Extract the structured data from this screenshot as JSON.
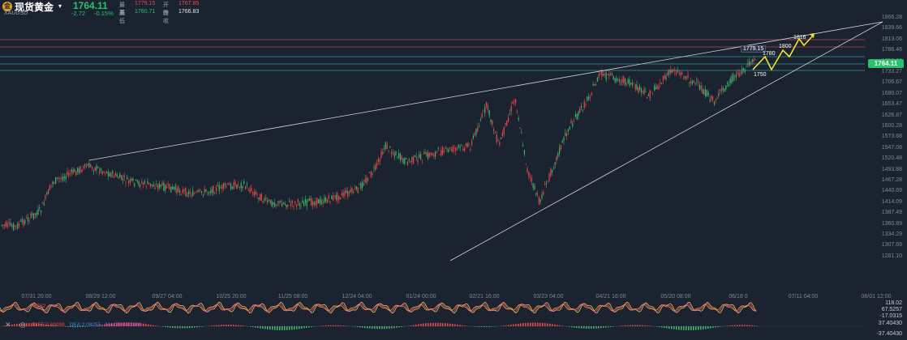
{
  "header": {
    "logo_glyph": "金",
    "symbol_name": "现货黄金",
    "symbol_code": "XAUUSD",
    "caret": "▾",
    "price": "1764.11",
    "change": "-2.72",
    "change_pct": "-0.15%",
    "high_label": "最高",
    "high_value": "1779.15",
    "open_label": "开盘",
    "open_value": "1767.85",
    "low_label": "最低",
    "low_value": "1760.71",
    "prev_label": "昨收",
    "prev_value": "1766.83"
  },
  "y_axis_labels": [
    "1866.28",
    "1839.66",
    "1813.06",
    "1786.46",
    "1759.86",
    "1733.27",
    "1706.67",
    "1680.07",
    "1653.47",
    "1626.87",
    "1600.28",
    "1573.68",
    "1547.08",
    "1520.48",
    "1493.88",
    "1467.28",
    "1440.69",
    "1414.09",
    "1387.49",
    "1360.89",
    "1334.29",
    "1307.69",
    "1281.10"
  ],
  "x_axis_labels": [
    "07/31 20:00",
    "08/29 12:00",
    "09/27 04:00",
    "10/25 20:00",
    "11/25 08:00",
    "12/24 04:00",
    "01/24 00:00",
    "02/21 16:00",
    "03/23 04:00",
    "04/21 16:00",
    "05/20 08:00",
    "06/18 0",
    "07/11 04:00",
    "08/01 12:00"
  ],
  "current_price_tag": "1764.11",
  "annotations": {
    "box_high": "1779.15",
    "a1780": "1780",
    "a1800": "1800",
    "a1816": "1816",
    "a1750": "1750"
  },
  "indicators": {
    "kdj_text": "J:118.02  K:67.52  D:  -17.03",
    "kdj_partial": "4.762",
    "macd_diff": "DIFF:2.69098",
    "macd_dea": "DEA:2.08255",
    "macd_val": "MACD:0.83686",
    "kdj_right_top": "118.02",
    "kdj_right_mid": "67.5257",
    "kdj_right_bot": "-17.0315",
    "macd_right_top": "37.40430",
    "macd_right_bot": "-37.40430"
  },
  "icons": {
    "close": "close-icon",
    "eye": "eye-icon"
  },
  "colors": {
    "background": "#1b2230",
    "up_candle": "#e84a4a",
    "down_candle": "#3fb36a",
    "price_tag": "#27c36b",
    "resistance_line": "#b84a4a",
    "support_line": "#2a9d9d",
    "projection": "#f5e62a"
  }
}
